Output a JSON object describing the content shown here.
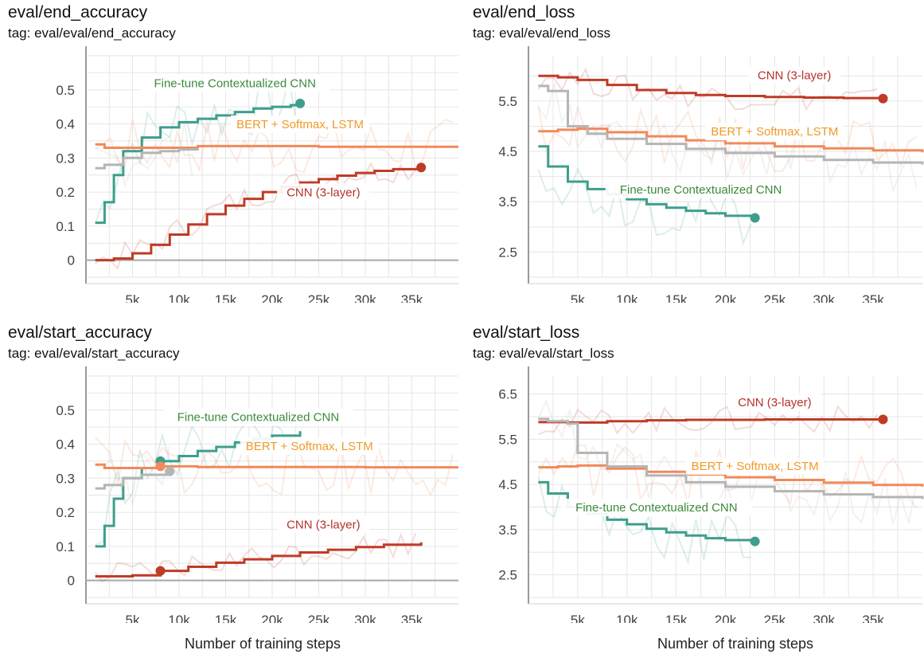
{
  "colors": {
    "cnn": "#bf3b26",
    "bert": "#f08a5b",
    "finetune": "#3e9e8c",
    "gray": "#b5b5b5",
    "label_green": "#3a8a3a",
    "label_orange": "#ef9a2a",
    "label_red": "#b3322a"
  },
  "footer": {
    "xlabel": "Number of training steps"
  },
  "chart_data": [
    {
      "id": "end_accuracy",
      "type": "line",
      "title": "eval/end_accuracy",
      "tag": "tag: eval/eval/end_accuracy",
      "xlim": [
        0,
        40000
      ],
      "ylim": [
        -0.05,
        0.6
      ],
      "xticks": [
        5000,
        10000,
        15000,
        20000,
        25000,
        30000,
        35000
      ],
      "xtick_labels": [
        "5k",
        "10k",
        "15k",
        "20k",
        "25k",
        "30k",
        "35k"
      ],
      "yticks": [
        0,
        0.1,
        0.2,
        0.3,
        0.4,
        0.5
      ],
      "ytick_labels": [
        "0",
        "0.1",
        "0.2",
        "0.3",
        "0.4",
        "0.5"
      ],
      "xlabel": "",
      "series": [
        {
          "name": "Fine-tune Contextualized CNN",
          "color_key": "finetune",
          "label_color_key": "label_green",
          "x": [
            1000,
            2000,
            3000,
            4000,
            6000,
            8000,
            10000,
            12000,
            14000,
            16000,
            18000,
            20000,
            22000,
            23000
          ],
          "y": [
            0.11,
            0.17,
            0.25,
            0.32,
            0.36,
            0.39,
            0.405,
            0.415,
            0.425,
            0.435,
            0.445,
            0.45,
            0.455,
            0.46
          ],
          "end_marker": true,
          "label_at": [
            16000,
            0.51
          ]
        },
        {
          "name": "BERT + Softmax, LSTM",
          "color_key": "bert",
          "label_color_key": "label_orange",
          "x": [
            1000,
            2000,
            4000,
            8000,
            12000,
            16000,
            20000,
            25000,
            30000,
            35000,
            40000
          ],
          "y": [
            0.34,
            0.33,
            0.33,
            0.33,
            0.335,
            0.335,
            0.335,
            0.333,
            0.333,
            0.333,
            0.333
          ],
          "end_marker": false,
          "label_at": [
            23000,
            0.39
          ]
        },
        {
          "name": "",
          "color_key": "gray",
          "label_color_key": "gray",
          "x": [
            1000,
            2000,
            4000,
            6000,
            8000,
            10000,
            12000
          ],
          "y": [
            0.27,
            0.28,
            0.3,
            0.315,
            0.32,
            0.325,
            0.33
          ],
          "end_marker": false
        },
        {
          "name": "CNN (3-layer)",
          "color_key": "cnn",
          "label_color_key": "label_red",
          "x": [
            1000,
            3000,
            5000,
            7000,
            9000,
            11000,
            13000,
            15000,
            17000,
            19000,
            21000,
            23000,
            25000,
            27000,
            29000,
            31000,
            33000,
            36000
          ],
          "y": [
            0.0,
            0.005,
            0.02,
            0.045,
            0.075,
            0.105,
            0.135,
            0.16,
            0.18,
            0.2,
            0.215,
            0.228,
            0.238,
            0.248,
            0.256,
            0.262,
            0.267,
            0.272
          ],
          "end_marker": true,
          "label_at": [
            25500,
            0.19
          ]
        }
      ]
    },
    {
      "id": "end_loss",
      "type": "line",
      "title": "eval/end_loss",
      "tag": "tag: eval/eval/end_loss",
      "xlim": [
        0,
        40000
      ],
      "ylim": [
        2.0,
        6.4
      ],
      "xticks": [
        5000,
        10000,
        15000,
        20000,
        25000,
        30000,
        35000
      ],
      "xtick_labels": [
        "5k",
        "10k",
        "15k",
        "20k",
        "25k",
        "30k",
        "35k"
      ],
      "yticks": [
        2.5,
        3.5,
        4.5,
        5.5
      ],
      "ytick_labels": [
        "2.5",
        "3.5",
        "4.5",
        "5.5"
      ],
      "xlabel": "",
      "series": [
        {
          "name": "CNN (3-layer)",
          "color_key": "cnn",
          "label_color_key": "label_red",
          "x": [
            1000,
            3000,
            5000,
            8000,
            11000,
            14000,
            17000,
            20000,
            24000,
            28000,
            32000,
            36000
          ],
          "y": [
            6.0,
            5.97,
            5.92,
            5.82,
            5.72,
            5.66,
            5.62,
            5.6,
            5.58,
            5.57,
            5.56,
            5.55
          ],
          "end_marker": true,
          "label_at": [
            27000,
            5.95
          ]
        },
        {
          "name": "BERT + Softmax, LSTM",
          "color_key": "bert",
          "label_color_key": "label_orange",
          "x": [
            1000,
            3000,
            5000,
            8000,
            12000,
            16000,
            20000,
            25000,
            30000,
            35000,
            40000
          ],
          "y": [
            4.9,
            4.93,
            4.95,
            4.88,
            4.8,
            4.72,
            4.66,
            4.6,
            4.56,
            4.52,
            4.48
          ],
          "end_marker": false,
          "label_at": [
            25000,
            4.83
          ]
        },
        {
          "name": "",
          "color_key": "gray",
          "label_color_key": "gray",
          "x": [
            1000,
            2000,
            4000,
            6000,
            8000,
            12000,
            16000,
            20000,
            25000,
            30000,
            35000,
            40000
          ],
          "y": [
            5.8,
            5.7,
            5.0,
            4.85,
            4.75,
            4.65,
            4.55,
            4.47,
            4.4,
            4.33,
            4.28,
            4.24
          ],
          "end_marker": false
        },
        {
          "name": "Fine-tune Contextualized CNN",
          "color_key": "finetune",
          "label_color_key": "label_green",
          "x": [
            1000,
            2000,
            4000,
            6000,
            8000,
            10000,
            12000,
            14000,
            16000,
            18000,
            20000,
            23000
          ],
          "y": [
            4.6,
            4.2,
            3.9,
            3.75,
            3.65,
            3.55,
            3.45,
            3.38,
            3.32,
            3.27,
            3.22,
            3.18
          ],
          "end_marker": true,
          "label_at": [
            17500,
            3.68
          ]
        }
      ]
    },
    {
      "id": "start_accuracy",
      "type": "line",
      "title": "eval/start_accuracy",
      "tag": "tag: eval/eval/start_accuracy",
      "xlim": [
        0,
        40000
      ],
      "ylim": [
        -0.05,
        0.6
      ],
      "xticks": [
        5000,
        10000,
        15000,
        20000,
        25000,
        30000,
        35000
      ],
      "xtick_labels": [
        "5k",
        "10k",
        "15k",
        "20k",
        "25k",
        "30k",
        "35k"
      ],
      "yticks": [
        0,
        0.1,
        0.2,
        0.3,
        0.4,
        0.5
      ],
      "ytick_labels": [
        "0",
        "0.1",
        "0.2",
        "0.3",
        "0.4",
        "0.5"
      ],
      "xlabel": "Number of training steps",
      "series": [
        {
          "name": "Fine-tune Contextualized CNN",
          "color_key": "finetune",
          "label_color_key": "label_green",
          "x": [
            1000,
            2000,
            3000,
            4000,
            6000,
            8000,
            10000,
            12000,
            14000,
            16000,
            18000,
            20000,
            23000
          ],
          "y": [
            0.1,
            0.16,
            0.24,
            0.3,
            0.33,
            0.35,
            0.365,
            0.38,
            0.392,
            0.405,
            0.415,
            0.425,
            0.438
          ],
          "end_marker": false,
          "marker_at": [
            8000,
            0.35
          ],
          "label_at": [
            18500,
            0.47
          ]
        },
        {
          "name": "BERT + Softmax, LSTM",
          "color_key": "bert",
          "label_color_key": "label_orange",
          "x": [
            1000,
            2000,
            4000,
            8000,
            12000,
            16000,
            20000,
            25000,
            30000,
            35000,
            40000
          ],
          "y": [
            0.34,
            0.33,
            0.33,
            0.335,
            0.333,
            0.333,
            0.333,
            0.333,
            0.332,
            0.332,
            0.332
          ],
          "end_marker": false,
          "marker_at": [
            8000,
            0.335
          ],
          "label_at": [
            24000,
            0.385
          ]
        },
        {
          "name": "",
          "color_key": "gray",
          "label_color_key": "gray",
          "x": [
            1000,
            2000,
            4000,
            6000,
            9000
          ],
          "y": [
            0.27,
            0.28,
            0.3,
            0.31,
            0.32
          ],
          "end_marker": false,
          "marker_at": [
            9000,
            0.32
          ]
        },
        {
          "name": "CNN (3-layer)",
          "color_key": "cnn",
          "label_color_key": "label_red",
          "x": [
            1000,
            3000,
            5000,
            8000,
            11000,
            14000,
            17000,
            20000,
            23000,
            26000,
            29000,
            32000,
            36000
          ],
          "y": [
            0.012,
            0.012,
            0.015,
            0.028,
            0.04,
            0.052,
            0.062,
            0.072,
            0.082,
            0.09,
            0.098,
            0.105,
            0.112
          ],
          "end_marker": false,
          "marker_at": [
            8000,
            0.028
          ],
          "label_at": [
            25500,
            0.155
          ]
        }
      ]
    },
    {
      "id": "start_loss",
      "type": "line",
      "title": "eval/start_loss",
      "tag": "tag: eval/eval/start_loss",
      "xlim": [
        0,
        40000
      ],
      "ylim": [
        2.0,
        6.9
      ],
      "xticks": [
        5000,
        10000,
        15000,
        20000,
        25000,
        30000,
        35000
      ],
      "xtick_labels": [
        "5k",
        "10k",
        "15k",
        "20k",
        "25k",
        "30k",
        "35k"
      ],
      "yticks": [
        2.5,
        3.5,
        4.5,
        5.5,
        6.5
      ],
      "ytick_labels": [
        "2.5",
        "3.5",
        "4.5",
        "5.5",
        "6.5"
      ],
      "xlabel": "Number of training steps",
      "series": [
        {
          "name": "CNN (3-layer)",
          "color_key": "cnn",
          "label_color_key": "label_red",
          "x": [
            1000,
            4000,
            8000,
            12000,
            16000,
            20000,
            24000,
            28000,
            32000,
            36000
          ],
          "y": [
            5.88,
            5.87,
            5.9,
            5.92,
            5.93,
            5.93,
            5.94,
            5.94,
            5.94,
            5.94
          ],
          "end_marker": true,
          "label_at": [
            25000,
            6.25
          ]
        },
        {
          "name": "BERT + Softmax, LSTM",
          "color_key": "bert",
          "label_color_key": "label_orange",
          "x": [
            1000,
            3000,
            5000,
            8000,
            12000,
            16000,
            20000,
            25000,
            30000,
            35000,
            40000
          ],
          "y": [
            4.88,
            4.9,
            4.92,
            4.85,
            4.78,
            4.72,
            4.66,
            4.6,
            4.54,
            4.49,
            4.45
          ],
          "end_marker": false,
          "label_at": [
            23000,
            4.84
          ]
        },
        {
          "name": "",
          "color_key": "gray",
          "label_color_key": "gray",
          "x": [
            1000,
            2000,
            4000,
            5000,
            8000,
            12000,
            16000,
            20000,
            25000,
            30000,
            35000,
            40000
          ],
          "y": [
            5.95,
            5.9,
            5.85,
            5.2,
            4.9,
            4.7,
            4.55,
            4.45,
            4.35,
            4.28,
            4.22,
            4.18
          ],
          "end_marker": false
        },
        {
          "name": "Fine-tune Contextualized CNN",
          "color_key": "finetune",
          "label_color_key": "label_green",
          "x": [
            1000,
            2000,
            4000,
            6000,
            8000,
            10000,
            12000,
            14000,
            16000,
            18000,
            20000,
            23000
          ],
          "y": [
            4.55,
            4.3,
            4.0,
            3.85,
            3.72,
            3.62,
            3.52,
            3.44,
            3.37,
            3.31,
            3.27,
            3.24
          ],
          "end_marker": true,
          "label_at": [
            13000,
            3.92
          ]
        }
      ]
    }
  ]
}
